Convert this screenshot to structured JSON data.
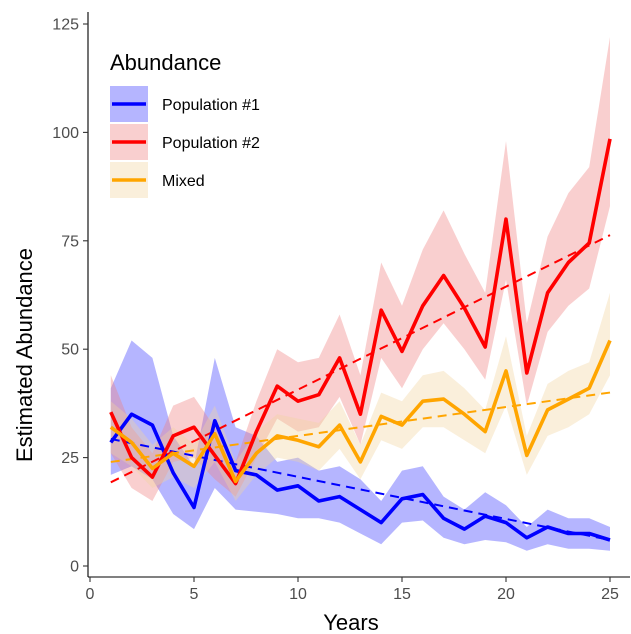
{
  "chart_data": {
    "type": "line",
    "xlabel": "Years",
    "ylabel": "Estimated Abundance",
    "xlim": [
      0,
      25.8
    ],
    "ylim": [
      0,
      125
    ],
    "xticks": [
      0,
      5,
      10,
      15,
      20,
      25
    ],
    "yticks": [
      0,
      25,
      50,
      75,
      100,
      125
    ],
    "grid": false,
    "legend": {
      "title": "Abundance",
      "placement": "top-left",
      "entries": [
        "Population #1",
        "Population #2",
        "Mixed"
      ]
    },
    "x": [
      1,
      2,
      3,
      4,
      5,
      6,
      7,
      8,
      9,
      10,
      11,
      12,
      13,
      14,
      15,
      16,
      17,
      18,
      19,
      20,
      21,
      22,
      23,
      24,
      25
    ],
    "series": [
      {
        "name": "Population #1",
        "color": "#0000ff",
        "band_color": "#3d3dff",
        "values": [
          28.5,
          35,
          32.5,
          21.5,
          13.5,
          33.5,
          22,
          21,
          17.5,
          18.5,
          15,
          16,
          13,
          10,
          15.5,
          16.5,
          11,
          8.5,
          11.5,
          10,
          6.5,
          9,
          7.5,
          7.5,
          6
        ],
        "lower": [
          21,
          23,
          20,
          12,
          8.5,
          18,
          13,
          12.5,
          12,
          11,
          11,
          10,
          7.5,
          5,
          10,
          10.5,
          6.5,
          5,
          6,
          5.5,
          3.5,
          5,
          4,
          4,
          3.5
        ],
        "upper": [
          41,
          52,
          48,
          30,
          23,
          48,
          32,
          30,
          24,
          25,
          22,
          23,
          20,
          15,
          22,
          23,
          16,
          13,
          17,
          14,
          9,
          13,
          11,
          11,
          9
        ],
        "trend": [
          29.3,
          6.0
        ]
      },
      {
        "name": "Population #2",
        "color": "#ff0000",
        "band_color": "#f08080",
        "values": [
          35.5,
          25,
          20.5,
          30,
          32,
          25.5,
          19,
          31,
          41.5,
          38,
          39.5,
          48,
          35,
          59,
          49.5,
          60,
          67,
          59.5,
          50.5,
          80,
          44.5,
          63,
          70,
          74.5,
          98.5
        ],
        "lower": [
          26,
          18,
          15,
          24,
          25,
          20,
          16,
          25,
          34,
          31,
          32,
          39,
          28,
          48,
          41,
          50,
          56,
          50,
          43,
          66,
          37,
          54,
          60,
          64,
          83
        ],
        "upper": [
          44,
          32,
          26,
          37,
          39,
          32,
          24,
          38,
          50,
          47,
          48,
          58,
          44,
          70,
          60,
          73,
          82,
          72,
          63,
          98,
          56,
          76,
          86,
          92,
          122
        ],
        "trend": [
          19.3,
          76.3
        ]
      },
      {
        "name": "Mixed",
        "color": "#ffa500",
        "band_color": "#f3d4a0",
        "values": [
          32,
          28.5,
          22.5,
          26,
          23,
          30.5,
          19.5,
          26,
          30,
          29,
          27.5,
          32.5,
          24,
          34.5,
          32.5,
          38,
          38.5,
          35,
          31,
          45,
          25.5,
          36,
          38.5,
          41,
          52
        ],
        "lower": [
          26,
          23,
          18,
          20.5,
          18,
          24,
          15,
          21,
          25,
          24,
          22,
          27,
          20,
          29,
          27,
          32,
          32,
          29,
          26,
          37,
          21,
          30,
          32,
          35,
          44
        ],
        "upper": [
          38,
          34,
          28,
          32,
          28,
          37,
          24,
          31,
          35,
          34,
          33,
          38,
          28,
          40,
          38,
          44,
          45,
          41,
          36,
          53,
          30,
          42,
          45,
          47,
          63
        ],
        "trend": [
          24.0,
          40.0
        ]
      }
    ]
  }
}
